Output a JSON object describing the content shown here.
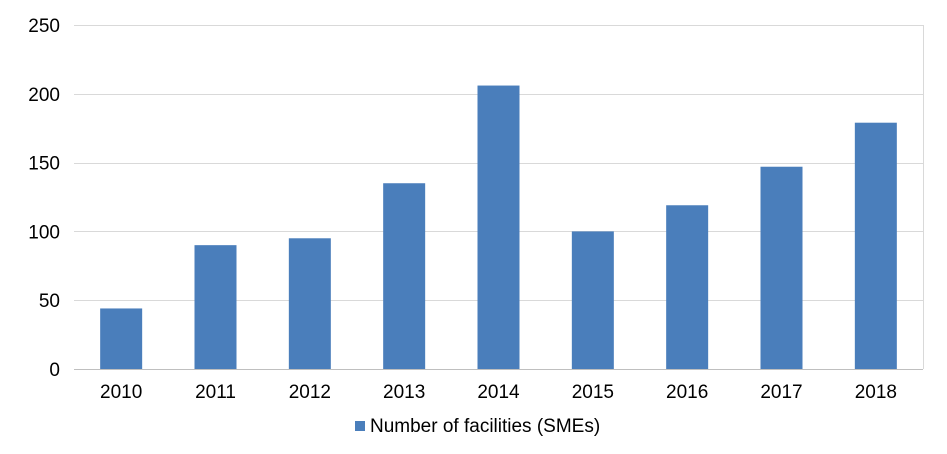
{
  "chart_data": {
    "type": "bar",
    "title": "",
    "xlabel": "",
    "ylabel": "",
    "categories": [
      "2010",
      "2011",
      "2012",
      "2013",
      "2014",
      "2015",
      "2016",
      "2017",
      "2018"
    ],
    "series": [
      {
        "name": "Number of facilities (SMEs)",
        "values": [
          44,
          90,
          95,
          135,
          206,
          100,
          119,
          147,
          179
        ],
        "color": "#4a7ebb"
      }
    ],
    "ylim": [
      0,
      250
    ],
    "yticks": [
      "0",
      "50",
      "100",
      "150",
      "200",
      "250"
    ],
    "grid": true,
    "gridColor": "#d9d9d9",
    "axisColor": "#bfbfbf",
    "legend": {
      "position": "bottom",
      "items": [
        "Number of facilities (SMEs)"
      ]
    }
  }
}
